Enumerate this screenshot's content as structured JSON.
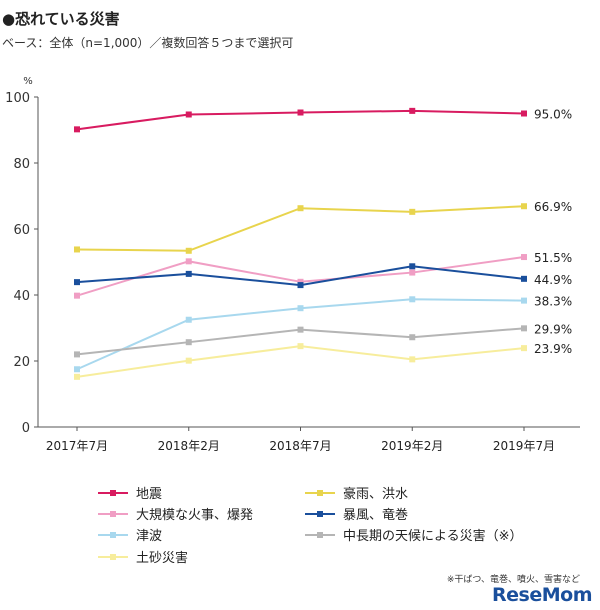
{
  "title": "●恐れている災害",
  "base_note": "ベース：全体（n=1,000）／複数回答５つまで選択可",
  "footnote": "※干ばつ、竜巻、噴火、雪害など",
  "logo": "ReseMom",
  "chart_data": {
    "type": "line",
    "title": "恐れている災害",
    "ylabel_unit": "%",
    "ylim": [
      0,
      100
    ],
    "yticks": [
      0,
      20,
      40,
      60,
      80,
      100
    ],
    "categories": [
      "2017年7月",
      "2018年2月",
      "2018年7月",
      "2019年2月",
      "2019年7月"
    ],
    "series": [
      {
        "name": "地震",
        "color": "#d81b60",
        "values": [
          90.2,
          94.7,
          95.3,
          95.8,
          95.0
        ],
        "end_label": "95.0%"
      },
      {
        "name": "豪雨、洪水",
        "color": "#e8d44d",
        "values": [
          53.8,
          53.4,
          66.3,
          65.2,
          66.9
        ],
        "end_label": "66.9%"
      },
      {
        "name": "大規模な火事、爆発",
        "color": "#f09ec4",
        "values": [
          39.8,
          50.2,
          44.0,
          46.8,
          51.5
        ],
        "end_label": "51.5%"
      },
      {
        "name": "暴風、竜巻",
        "color": "#1a4f9c",
        "values": [
          43.9,
          46.4,
          43.0,
          48.7,
          44.9
        ],
        "end_label": "44.9%"
      },
      {
        "name": "津波",
        "color": "#a8d8ee",
        "values": [
          17.5,
          32.5,
          36.0,
          38.7,
          38.3
        ],
        "end_label": "38.3%"
      },
      {
        "name": "中長期の天候による災害（※）",
        "color": "#b5b5b5",
        "values": [
          22.0,
          25.7,
          29.5,
          27.2,
          29.9
        ],
        "end_label": "29.9%"
      },
      {
        "name": "土砂災害",
        "color": "#f7ed9c",
        "values": [
          15.2,
          20.1,
          24.5,
          20.5,
          23.9
        ],
        "end_label": "23.9%"
      }
    ]
  }
}
